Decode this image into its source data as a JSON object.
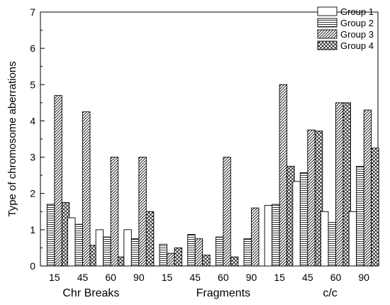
{
  "chart_data": {
    "type": "bar",
    "ylabel": "Type of chromosome aberrations",
    "ylim": [
      0,
      7
    ],
    "yticks": [
      0,
      1,
      2,
      3,
      4,
      5,
      6,
      7
    ],
    "legend_position": "top-right",
    "group_labels": [
      "Chr Breaks",
      "Fragments",
      "c/c"
    ],
    "categories": [
      "15",
      "45",
      "60",
      "90",
      "15",
      "45",
      "60",
      "90",
      "15",
      "45",
      "60",
      "90"
    ],
    "series": [
      {
        "name": "Group 1",
        "pattern": "none",
        "values": [
          0,
          1.33,
          1.0,
          1.0,
          0,
          0,
          0,
          0,
          1.67,
          2.33,
          1.5,
          1.5
        ]
      },
      {
        "name": "Group 2",
        "pattern": "hlines",
        "values": [
          1.7,
          1.15,
          0.8,
          0.75,
          0.6,
          0.87,
          0.8,
          0.75,
          1.7,
          2.57,
          1.2,
          2.75
        ]
      },
      {
        "name": "Group 3",
        "pattern": "diag",
        "values": [
          4.7,
          4.25,
          3.0,
          3.0,
          0.35,
          0.75,
          3.0,
          1.6,
          5.0,
          3.75,
          4.5,
          4.3
        ]
      },
      {
        "name": "Group 4",
        "pattern": "cross",
        "values": [
          1.75,
          0.57,
          0.25,
          1.5,
          0.5,
          0.3,
          0.25,
          0,
          2.75,
          3.72,
          4.5,
          3.25
        ]
      }
    ]
  }
}
